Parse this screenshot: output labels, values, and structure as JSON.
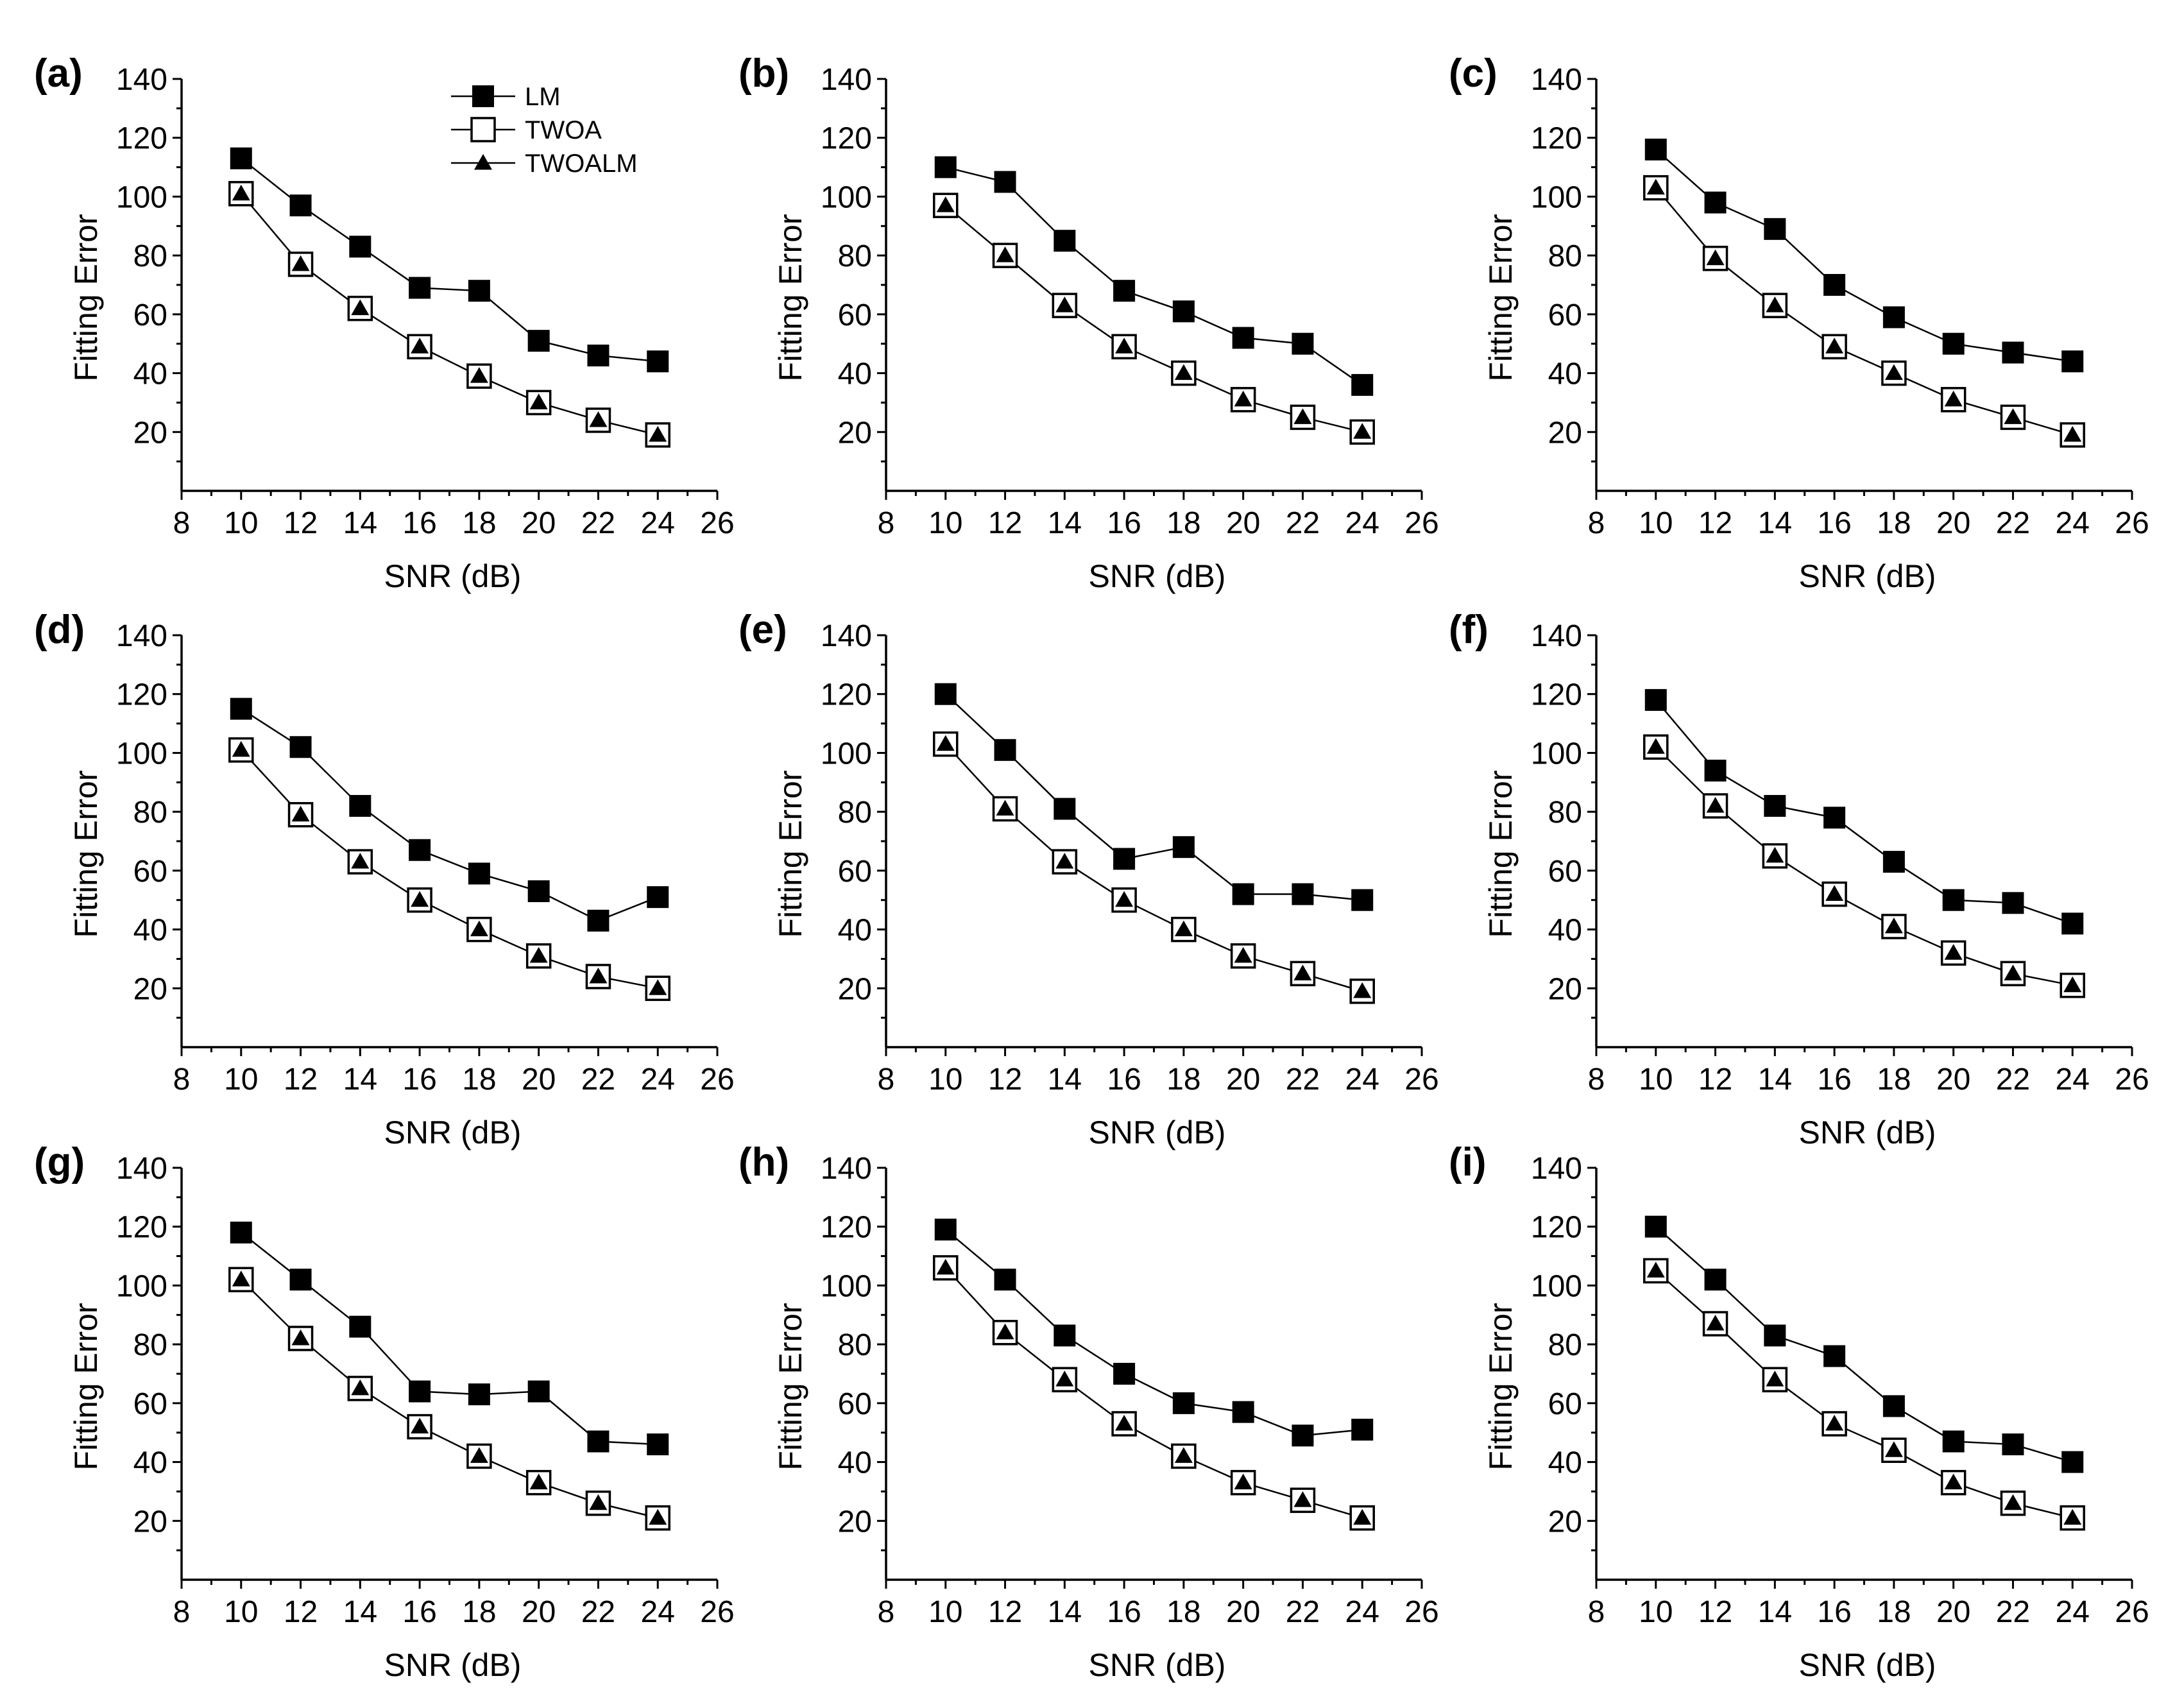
{
  "chart_data": [
    {
      "type": "line",
      "panel_label": "(a)",
      "xlabel": "SNR (dB)",
      "ylabel": "Fitting Error",
      "xlim": [
        8,
        26
      ],
      "ylim": [
        0,
        140
      ],
      "xticks": [
        8,
        10,
        12,
        14,
        16,
        18,
        20,
        22,
        24,
        26
      ],
      "yticks": [
        20,
        40,
        60,
        80,
        100,
        120,
        140
      ],
      "x": [
        10,
        12,
        14,
        16,
        18,
        20,
        22,
        24
      ],
      "legend_position": "top-center",
      "series": [
        {
          "name": "LM",
          "marker": "filled-square",
          "values": [
            113,
            97,
            83,
            69,
            68,
            51,
            46,
            44
          ]
        },
        {
          "name": "TWOA",
          "marker": "open-square",
          "values": [
            101,
            77,
            62,
            49,
            39,
            30,
            24,
            19
          ]
        },
        {
          "name": "TWOALM",
          "marker": "filled-triangle",
          "values": [
            101,
            77,
            62,
            49,
            39,
            30,
            24,
            19
          ]
        }
      ]
    },
    {
      "type": "line",
      "panel_label": "(b)",
      "xlabel": "SNR (dB)",
      "ylabel": "Fitting Error",
      "xlim": [
        8,
        26
      ],
      "ylim": [
        0,
        140
      ],
      "xticks": [
        8,
        10,
        12,
        14,
        16,
        18,
        20,
        22,
        24,
        26
      ],
      "yticks": [
        20,
        40,
        60,
        80,
        100,
        120,
        140
      ],
      "x": [
        10,
        12,
        14,
        16,
        18,
        20,
        22,
        24
      ],
      "series": [
        {
          "name": "LM",
          "marker": "filled-square",
          "values": [
            110,
            105,
            85,
            68,
            61,
            52,
            50,
            36
          ]
        },
        {
          "name": "TWOA",
          "marker": "open-square",
          "values": [
            97,
            80,
            63,
            49,
            40,
            31,
            25,
            20
          ]
        },
        {
          "name": "TWOALM",
          "marker": "filled-triangle",
          "values": [
            97,
            80,
            63,
            49,
            40,
            31,
            25,
            20
          ]
        }
      ]
    },
    {
      "type": "line",
      "panel_label": "(c)",
      "xlabel": "SNR (dB)",
      "ylabel": "Fitting Error",
      "xlim": [
        8,
        26
      ],
      "ylim": [
        0,
        140
      ],
      "xticks": [
        8,
        10,
        12,
        14,
        16,
        18,
        20,
        22,
        24,
        26
      ],
      "yticks": [
        20,
        40,
        60,
        80,
        100,
        120,
        140
      ],
      "x": [
        10,
        12,
        14,
        16,
        18,
        20,
        22,
        24
      ],
      "series": [
        {
          "name": "LM",
          "marker": "filled-square",
          "values": [
            116,
            98,
            89,
            70,
            59,
            50,
            47,
            44
          ]
        },
        {
          "name": "TWOA",
          "marker": "open-square",
          "values": [
            103,
            79,
            63,
            49,
            40,
            31,
            25,
            19
          ]
        },
        {
          "name": "TWOALM",
          "marker": "filled-triangle",
          "values": [
            103,
            79,
            63,
            49,
            40,
            31,
            25,
            19
          ]
        }
      ]
    },
    {
      "type": "line",
      "panel_label": "(d)",
      "xlabel": "SNR (dB)",
      "ylabel": "Fitting Error",
      "xlim": [
        8,
        26
      ],
      "ylim": [
        0,
        140
      ],
      "xticks": [
        8,
        10,
        12,
        14,
        16,
        18,
        20,
        22,
        24,
        26
      ],
      "yticks": [
        20,
        40,
        60,
        80,
        100,
        120,
        140
      ],
      "x": [
        10,
        12,
        14,
        16,
        18,
        20,
        22,
        24
      ],
      "series": [
        {
          "name": "LM",
          "marker": "filled-square",
          "values": [
            115,
            102,
            82,
            67,
            59,
            53,
            43,
            51
          ]
        },
        {
          "name": "TWOA",
          "marker": "open-square",
          "values": [
            101,
            79,
            63,
            50,
            40,
            31,
            24,
            20
          ]
        },
        {
          "name": "TWOALM",
          "marker": "filled-triangle",
          "values": [
            101,
            79,
            63,
            50,
            40,
            31,
            24,
            20
          ]
        }
      ]
    },
    {
      "type": "line",
      "panel_label": "(e)",
      "xlabel": "SNR (dB)",
      "ylabel": "Fitting Error",
      "xlim": [
        8,
        26
      ],
      "ylim": [
        0,
        140
      ],
      "xticks": [
        8,
        10,
        12,
        14,
        16,
        18,
        20,
        22,
        24,
        26
      ],
      "yticks": [
        20,
        40,
        60,
        80,
        100,
        120,
        140
      ],
      "x": [
        10,
        12,
        14,
        16,
        18,
        20,
        22,
        24
      ],
      "series": [
        {
          "name": "LM",
          "marker": "filled-square",
          "values": [
            120,
            101,
            81,
            64,
            68,
            52,
            52,
            50
          ]
        },
        {
          "name": "TWOA",
          "marker": "open-square",
          "values": [
            103,
            81,
            63,
            50,
            40,
            31,
            25,
            19
          ]
        },
        {
          "name": "TWOALM",
          "marker": "filled-triangle",
          "values": [
            103,
            81,
            63,
            50,
            40,
            31,
            25,
            19
          ]
        }
      ]
    },
    {
      "type": "line",
      "panel_label": "(f)",
      "xlabel": "SNR (dB)",
      "ylabel": "Fitting Error",
      "xlim": [
        8,
        26
      ],
      "ylim": [
        0,
        140
      ],
      "xticks": [
        8,
        10,
        12,
        14,
        16,
        18,
        20,
        22,
        24,
        26
      ],
      "yticks": [
        20,
        40,
        60,
        80,
        100,
        120,
        140
      ],
      "x": [
        10,
        12,
        14,
        16,
        18,
        20,
        22,
        24
      ],
      "series": [
        {
          "name": "LM",
          "marker": "filled-square",
          "values": [
            118,
            94,
            82,
            78,
            63,
            50,
            49,
            42
          ]
        },
        {
          "name": "TWOA",
          "marker": "open-square",
          "values": [
            102,
            82,
            65,
            52,
            41,
            32,
            25,
            21
          ]
        },
        {
          "name": "TWOALM",
          "marker": "filled-triangle",
          "values": [
            102,
            82,
            65,
            52,
            41,
            32,
            25,
            21
          ]
        }
      ]
    },
    {
      "type": "line",
      "panel_label": "(g)",
      "xlabel": "SNR (dB)",
      "ylabel": "Fitting Error",
      "xlim": [
        8,
        26
      ],
      "ylim": [
        0,
        140
      ],
      "xticks": [
        8,
        10,
        12,
        14,
        16,
        18,
        20,
        22,
        24,
        26
      ],
      "yticks": [
        20,
        40,
        60,
        80,
        100,
        120,
        140
      ],
      "x": [
        10,
        12,
        14,
        16,
        18,
        20,
        22,
        24
      ],
      "series": [
        {
          "name": "LM",
          "marker": "filled-square",
          "values": [
            118,
            102,
            86,
            64,
            63,
            64,
            47,
            46
          ]
        },
        {
          "name": "TWOA",
          "marker": "open-square",
          "values": [
            102,
            82,
            65,
            52,
            42,
            33,
            26,
            21
          ]
        },
        {
          "name": "TWOALM",
          "marker": "filled-triangle",
          "values": [
            102,
            82,
            65,
            52,
            42,
            33,
            26,
            21
          ]
        }
      ]
    },
    {
      "type": "line",
      "panel_label": "(h)",
      "xlabel": "SNR (dB)",
      "ylabel": "Fitting Error",
      "xlim": [
        8,
        26
      ],
      "ylim": [
        0,
        140
      ],
      "xticks": [
        8,
        10,
        12,
        14,
        16,
        18,
        20,
        22,
        24,
        26
      ],
      "yticks": [
        20,
        40,
        60,
        80,
        100,
        120,
        140
      ],
      "x": [
        10,
        12,
        14,
        16,
        18,
        20,
        22,
        24
      ],
      "series": [
        {
          "name": "LM",
          "marker": "filled-square",
          "values": [
            119,
            102,
            83,
            70,
            60,
            57,
            49,
            51
          ]
        },
        {
          "name": "TWOA",
          "marker": "open-square",
          "values": [
            106,
            84,
            68,
            53,
            42,
            33,
            27,
            21
          ]
        },
        {
          "name": "TWOALM",
          "marker": "filled-triangle",
          "values": [
            106,
            84,
            68,
            53,
            42,
            33,
            27,
            21
          ]
        }
      ]
    },
    {
      "type": "line",
      "panel_label": "(i)",
      "xlabel": "SNR (dB)",
      "ylabel": "Fitting Error",
      "xlim": [
        8,
        26
      ],
      "ylim": [
        0,
        140
      ],
      "xticks": [
        8,
        10,
        12,
        14,
        16,
        18,
        20,
        22,
        24,
        26
      ],
      "yticks": [
        20,
        40,
        60,
        80,
        100,
        120,
        140
      ],
      "x": [
        10,
        12,
        14,
        16,
        18,
        20,
        22,
        24
      ],
      "series": [
        {
          "name": "LM",
          "marker": "filled-square",
          "values": [
            120,
            102,
            83,
            76,
            59,
            47,
            46,
            40
          ]
        },
        {
          "name": "TWOA",
          "marker": "open-square",
          "values": [
            105,
            87,
            68,
            53,
            44,
            33,
            26,
            21
          ]
        },
        {
          "name": "TWOALM",
          "marker": "filled-triangle",
          "values": [
            105,
            87,
            68,
            53,
            44,
            33,
            26,
            21
          ]
        }
      ]
    }
  ]
}
